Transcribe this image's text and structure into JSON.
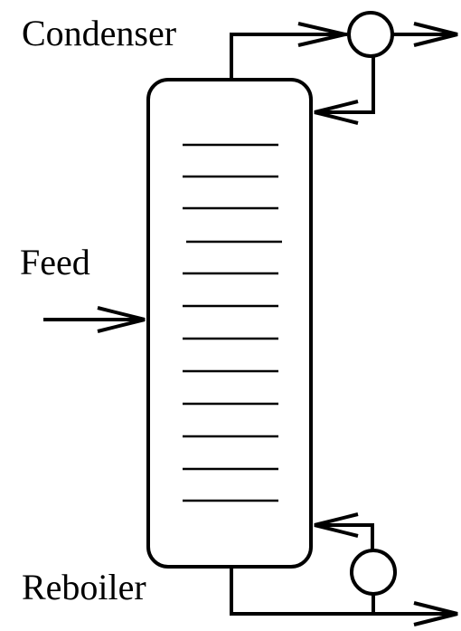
{
  "labels": {
    "condenser": "Condenser",
    "feed": "Feed",
    "reboiler": "Reboiler"
  }
}
